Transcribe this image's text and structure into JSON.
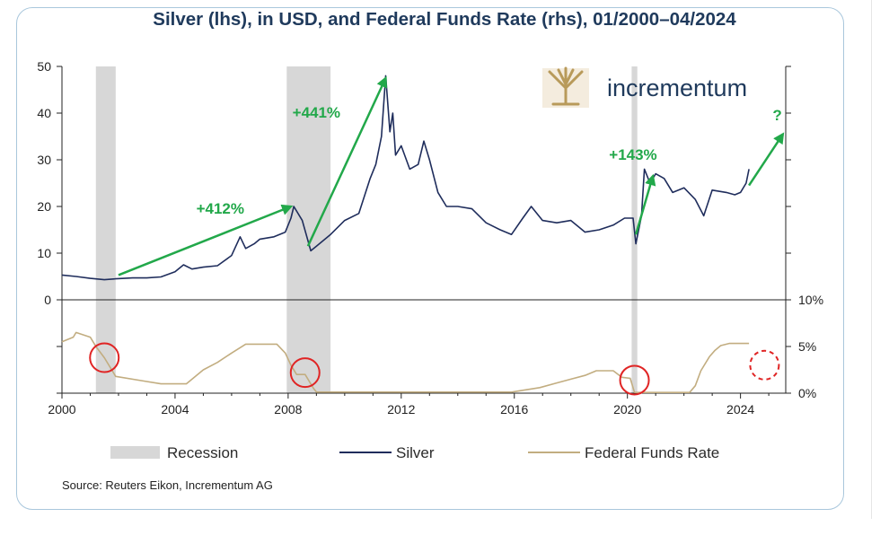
{
  "chart_data": {
    "type": "line",
    "title": "Silver (lhs), in USD, and Federal Funds Rate (rhs), 01/2000–04/2024",
    "source": "Source: Reuters Eikon, Incrementum AG",
    "brand": "incrementum",
    "x_tick_labels": [
      "2000",
      "2004",
      "2008",
      "2012",
      "2016",
      "2020",
      "2024"
    ],
    "x_ticks": [
      2000,
      2004,
      2008,
      2012,
      2016,
      2020,
      2024
    ],
    "xlim": [
      2000,
      2025.6
    ],
    "upper_panel": {
      "ylim": [
        0,
        50
      ],
      "y_ticks": [
        0,
        10,
        20,
        30,
        40,
        50
      ],
      "y_tick_labels": [
        "0",
        "10",
        "20",
        "30",
        "40",
        "50"
      ]
    },
    "lower_panel": {
      "ylim": [
        0,
        10
      ],
      "y_ticks": [
        0,
        5,
        10
      ],
      "y_tick_labels": [
        "0%",
        "5%",
        "10%"
      ]
    },
    "recessions": [
      [
        2001.2,
        2001.9
      ],
      [
        2007.95,
        2009.5
      ],
      [
        2020.15,
        2020.35
      ]
    ],
    "series": [
      {
        "name": "Silver",
        "axis": "left",
        "color": "#1f2d5c",
        "x": [
          2000.0,
          2000.5,
          2001.0,
          2001.5,
          2001.9,
          2002.5,
          2003.0,
          2003.5,
          2004.0,
          2004.3,
          2004.6,
          2005.0,
          2005.5,
          2006.0,
          2006.3,
          2006.5,
          2006.8,
          2007.0,
          2007.5,
          2007.9,
          2008.1,
          2008.2,
          2008.5,
          2008.8,
          2009.0,
          2009.5,
          2010.0,
          2010.5,
          2010.9,
          2011.1,
          2011.3,
          2011.45,
          2011.6,
          2011.7,
          2011.8,
          2012.0,
          2012.3,
          2012.6,
          2012.8,
          2013.0,
          2013.3,
          2013.6,
          2014.0,
          2014.5,
          2015.0,
          2015.5,
          2015.9,
          2016.3,
          2016.6,
          2017.0,
          2017.5,
          2018.0,
          2018.5,
          2019.0,
          2019.5,
          2019.9,
          2020.2,
          2020.3,
          2020.5,
          2020.6,
          2020.8,
          2021.0,
          2021.3,
          2021.6,
          2022.0,
          2022.4,
          2022.7,
          2023.0,
          2023.5,
          2023.8,
          2024.0,
          2024.2,
          2024.3
        ],
        "values": [
          5.3,
          5.0,
          4.6,
          4.3,
          4.5,
          4.7,
          4.7,
          4.9,
          6.0,
          7.5,
          6.6,
          7.0,
          7.3,
          9.5,
          13.5,
          11.0,
          12.0,
          13.0,
          13.5,
          14.5,
          17.5,
          20.0,
          17.0,
          10.5,
          11.5,
          14.0,
          17.0,
          18.5,
          26.0,
          29.0,
          35.0,
          48.0,
          36.0,
          40.0,
          31.0,
          33.0,
          28.0,
          29.0,
          34.0,
          30.0,
          23.0,
          20.0,
          20.0,
          19.5,
          16.5,
          15.0,
          14.0,
          17.5,
          20.0,
          17.0,
          16.5,
          17.0,
          14.5,
          15.0,
          16.0,
          17.5,
          17.5,
          12.0,
          18.0,
          28.0,
          25.0,
          27.0,
          26.0,
          23.0,
          24.0,
          21.5,
          18.0,
          23.5,
          23.0,
          22.5,
          23.0,
          25.0,
          28.0
        ]
      },
      {
        "name": "Federal Funds Rate",
        "axis": "right",
        "color": "#c2ad80",
        "x": [
          2000.0,
          2000.4,
          2000.5,
          2001.0,
          2001.2,
          2001.5,
          2001.9,
          2002.9,
          2003.5,
          2004.4,
          2005.0,
          2005.5,
          2006.0,
          2006.5,
          2007.6,
          2007.9,
          2008.1,
          2008.3,
          2008.6,
          2008.9,
          2009.0,
          2015.9,
          2016.9,
          2017.5,
          2018.0,
          2018.5,
          2018.9,
          2019.5,
          2019.8,
          2020.1,
          2020.25,
          2022.2,
          2022.4,
          2022.6,
          2022.9,
          2023.1,
          2023.3,
          2023.6,
          2024.3
        ],
        "values": [
          5.5,
          6.0,
          6.5,
          6.0,
          5.0,
          3.8,
          1.8,
          1.3,
          1.0,
          1.0,
          2.5,
          3.3,
          4.3,
          5.25,
          5.25,
          4.3,
          3.0,
          2.0,
          2.0,
          0.5,
          0.12,
          0.12,
          0.6,
          1.1,
          1.5,
          1.9,
          2.4,
          2.4,
          1.7,
          1.6,
          0.08,
          0.08,
          0.8,
          2.4,
          3.9,
          4.6,
          5.1,
          5.33,
          5.33
        ]
      }
    ],
    "annotations": {
      "pct_412": "+412%",
      "pct_441": "+441%",
      "pct_143": "+143%",
      "question": "?"
    },
    "legend": {
      "placement": "bottom",
      "recession": "Recession",
      "silver": "Silver",
      "fed_funds": "Federal Funds Rate"
    }
  }
}
